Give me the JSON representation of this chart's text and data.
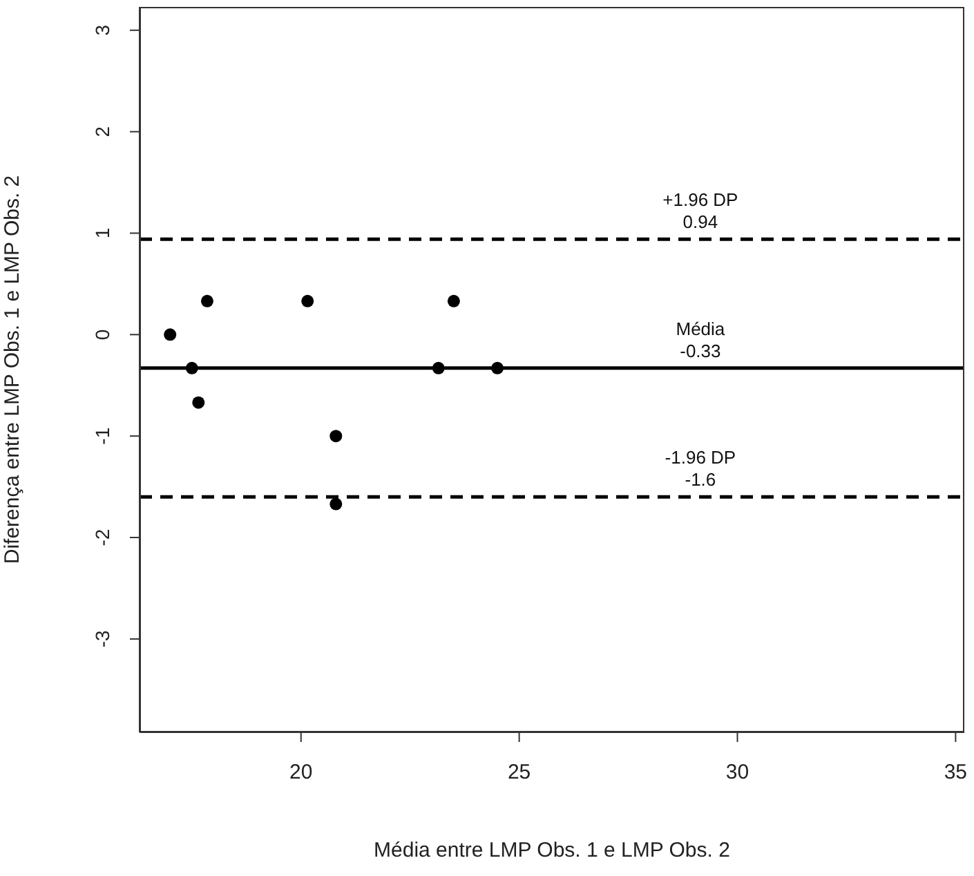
{
  "chart_data": {
    "type": "scatter",
    "xlabel": "Média entre LMP Obs. 1 e LMP Obs. 2",
    "ylabel": "Diferença entre LMP Obs. 1 e LMP Obs. 2",
    "x": [
      17,
      17.5,
      17.65,
      17.85,
      20.15,
      20.8,
      20.8,
      23.15,
      23.5,
      24.5
    ],
    "values": [
      0,
      -0.33,
      -0.67,
      0.33,
      0.33,
      -1,
      -1.67,
      -0.33,
      0.33,
      -0.33
    ],
    "color": "#000000",
    "marker": "circle",
    "xlim": [
      16.3,
      35.2
    ],
    "xticks": [
      20,
      25,
      30,
      35
    ],
    "ylim": [
      -3.92,
      3.23
    ],
    "yticks": [
      -3,
      -2,
      -1,
      0,
      1,
      2,
      3
    ],
    "ref_lines": [
      {
        "axis": "y",
        "value": 0.94,
        "label": "+1.96 DP\n0.94",
        "line_style": "dashed",
        "color": "#000000"
      },
      {
        "axis": "y",
        "value": -0.33,
        "label": "Média\n-0.33",
        "line_style": "solid",
        "color": "#000000"
      },
      {
        "axis": "y",
        "value": -1.6,
        "label": "-1.96 DP\n-1.6",
        "line_style": "dashed",
        "color": "#000000"
      }
    ],
    "grid": false,
    "legend": false
  }
}
